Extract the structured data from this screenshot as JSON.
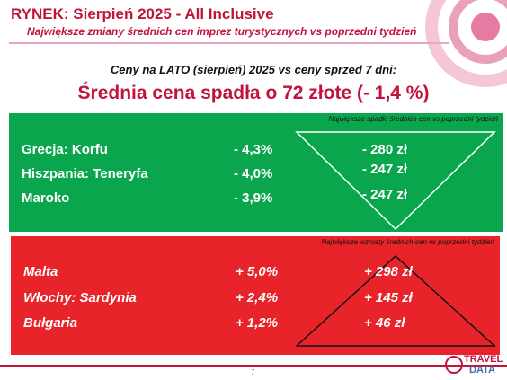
{
  "header": {
    "title": "RYNEK: Sierpień 2025 - All Inclusive",
    "subtitle": "Największe zmiany średnich cen imprez turystycznych vs poprzedni tydzień"
  },
  "intro": "Ceny na LATO (sierpień) 2025 vs ceny sprzed 7 dni:",
  "headline": "Średnia cena spadła o 72 złote (- 1,4 %)",
  "decreases": {
    "heading": "Największe spadki średnich cen vs poprzedni tydzień",
    "rows": [
      [
        "Grecja: Korfu",
        "- 4,3%",
        "- 280 zł"
      ],
      [
        "Hiszpania: Teneryfa",
        "- 4,0%",
        "- 247 zł"
      ],
      [
        "Maroko",
        "- 3,9%",
        "- 247 zł"
      ]
    ]
  },
  "increases": {
    "heading": "Największe wzrosty średnich cen vs poprzedni tydzień",
    "rows": [
      [
        "Malta",
        "+ 5,0%",
        "+ 298 zł"
      ],
      [
        "Włochy: Sardynia",
        "+ 2,4%",
        "+ 145 zł"
      ],
      [
        "Bułgaria",
        "+ 1,2%",
        "+ 46 zł"
      ]
    ]
  },
  "page_number": "7",
  "logo": {
    "line1": "TRAVEL",
    "line2": "DATA"
  }
}
